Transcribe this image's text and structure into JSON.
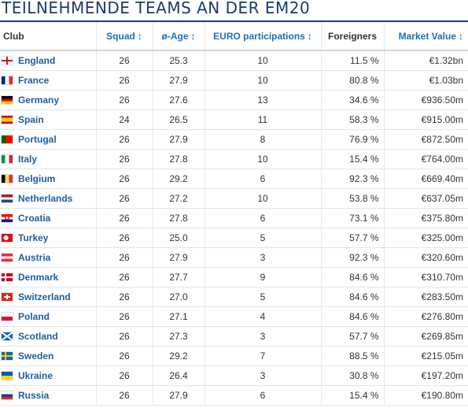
{
  "title": "TEILNEHMENDE TEAMS AN DER EM20",
  "columns": {
    "club": "Club",
    "squad": "Squad",
    "age": "ø-Age",
    "euro": "EURO participations",
    "foreigners": "Foreigners",
    "market_value": "Market Value",
    "sort_icon": "↕"
  },
  "rows": [
    {
      "club": "England",
      "flag": "flag-england-icon",
      "squad": "26",
      "age": "25.3",
      "euro": "10",
      "foreigners": "11.5 %",
      "value": "€1.32bn"
    },
    {
      "club": "France",
      "flag": "flag-france-icon",
      "squad": "26",
      "age": "27.9",
      "euro": "10",
      "foreigners": "80.8 %",
      "value": "€1.03bn"
    },
    {
      "club": "Germany",
      "flag": "flag-germany-icon",
      "squad": "26",
      "age": "27.6",
      "euro": "13",
      "foreigners": "34.6 %",
      "value": "€936.50m"
    },
    {
      "club": "Spain",
      "flag": "flag-spain-icon",
      "squad": "24",
      "age": "26.5",
      "euro": "11",
      "foreigners": "58.3 %",
      "value": "€915.00m"
    },
    {
      "club": "Portugal",
      "flag": "flag-portugal-icon",
      "squad": "26",
      "age": "27.9",
      "euro": "8",
      "foreigners": "76.9 %",
      "value": "€872.50m"
    },
    {
      "club": "Italy",
      "flag": "flag-italy-icon",
      "squad": "26",
      "age": "27.8",
      "euro": "10",
      "foreigners": "15.4 %",
      "value": "€764.00m"
    },
    {
      "club": "Belgium",
      "flag": "flag-belgium-icon",
      "squad": "26",
      "age": "29.2",
      "euro": "6",
      "foreigners": "92.3 %",
      "value": "€669.40m"
    },
    {
      "club": "Netherlands",
      "flag": "flag-netherlands-icon",
      "squad": "26",
      "age": "27.2",
      "euro": "10",
      "foreigners": "53.8 %",
      "value": "€637.05m"
    },
    {
      "club": "Croatia",
      "flag": "flag-croatia-icon",
      "squad": "26",
      "age": "27.8",
      "euro": "6",
      "foreigners": "73.1 %",
      "value": "€375.80m"
    },
    {
      "club": "Turkey",
      "flag": "flag-turkey-icon",
      "squad": "26",
      "age": "25.0",
      "euro": "5",
      "foreigners": "57.7 %",
      "value": "€325.00m"
    },
    {
      "club": "Austria",
      "flag": "flag-austria-icon",
      "squad": "26",
      "age": "27.9",
      "euro": "3",
      "foreigners": "92.3 %",
      "value": "€320.60m"
    },
    {
      "club": "Denmark",
      "flag": "flag-denmark-icon",
      "squad": "26",
      "age": "27.7",
      "euro": "9",
      "foreigners": "84.6 %",
      "value": "€310.70m"
    },
    {
      "club": "Switzerland",
      "flag": "flag-switzerland-icon",
      "squad": "26",
      "age": "27.0",
      "euro": "5",
      "foreigners": "84.6 %",
      "value": "€283.50m"
    },
    {
      "club": "Poland",
      "flag": "flag-poland-icon",
      "squad": "26",
      "age": "27.1",
      "euro": "4",
      "foreigners": "84.6 %",
      "value": "€276.80m"
    },
    {
      "club": "Scotland",
      "flag": "flag-scotland-icon",
      "squad": "26",
      "age": "27.3",
      "euro": "3",
      "foreigners": "57.7 %",
      "value": "€269.85m"
    },
    {
      "club": "Sweden",
      "flag": "flag-sweden-icon",
      "squad": "26",
      "age": "29.2",
      "euro": "7",
      "foreigners": "88.5 %",
      "value": "€215.05m"
    },
    {
      "club": "Ukraine",
      "flag": "flag-ukraine-icon",
      "squad": "26",
      "age": "26.4",
      "euro": "3",
      "foreigners": "30.8 %",
      "value": "€197.20m"
    },
    {
      "club": "Russia",
      "flag": "flag-russia-icon",
      "squad": "26",
      "age": "27.9",
      "euro": "6",
      "foreigners": "15.4 %",
      "value": "€190.80m"
    }
  ]
}
